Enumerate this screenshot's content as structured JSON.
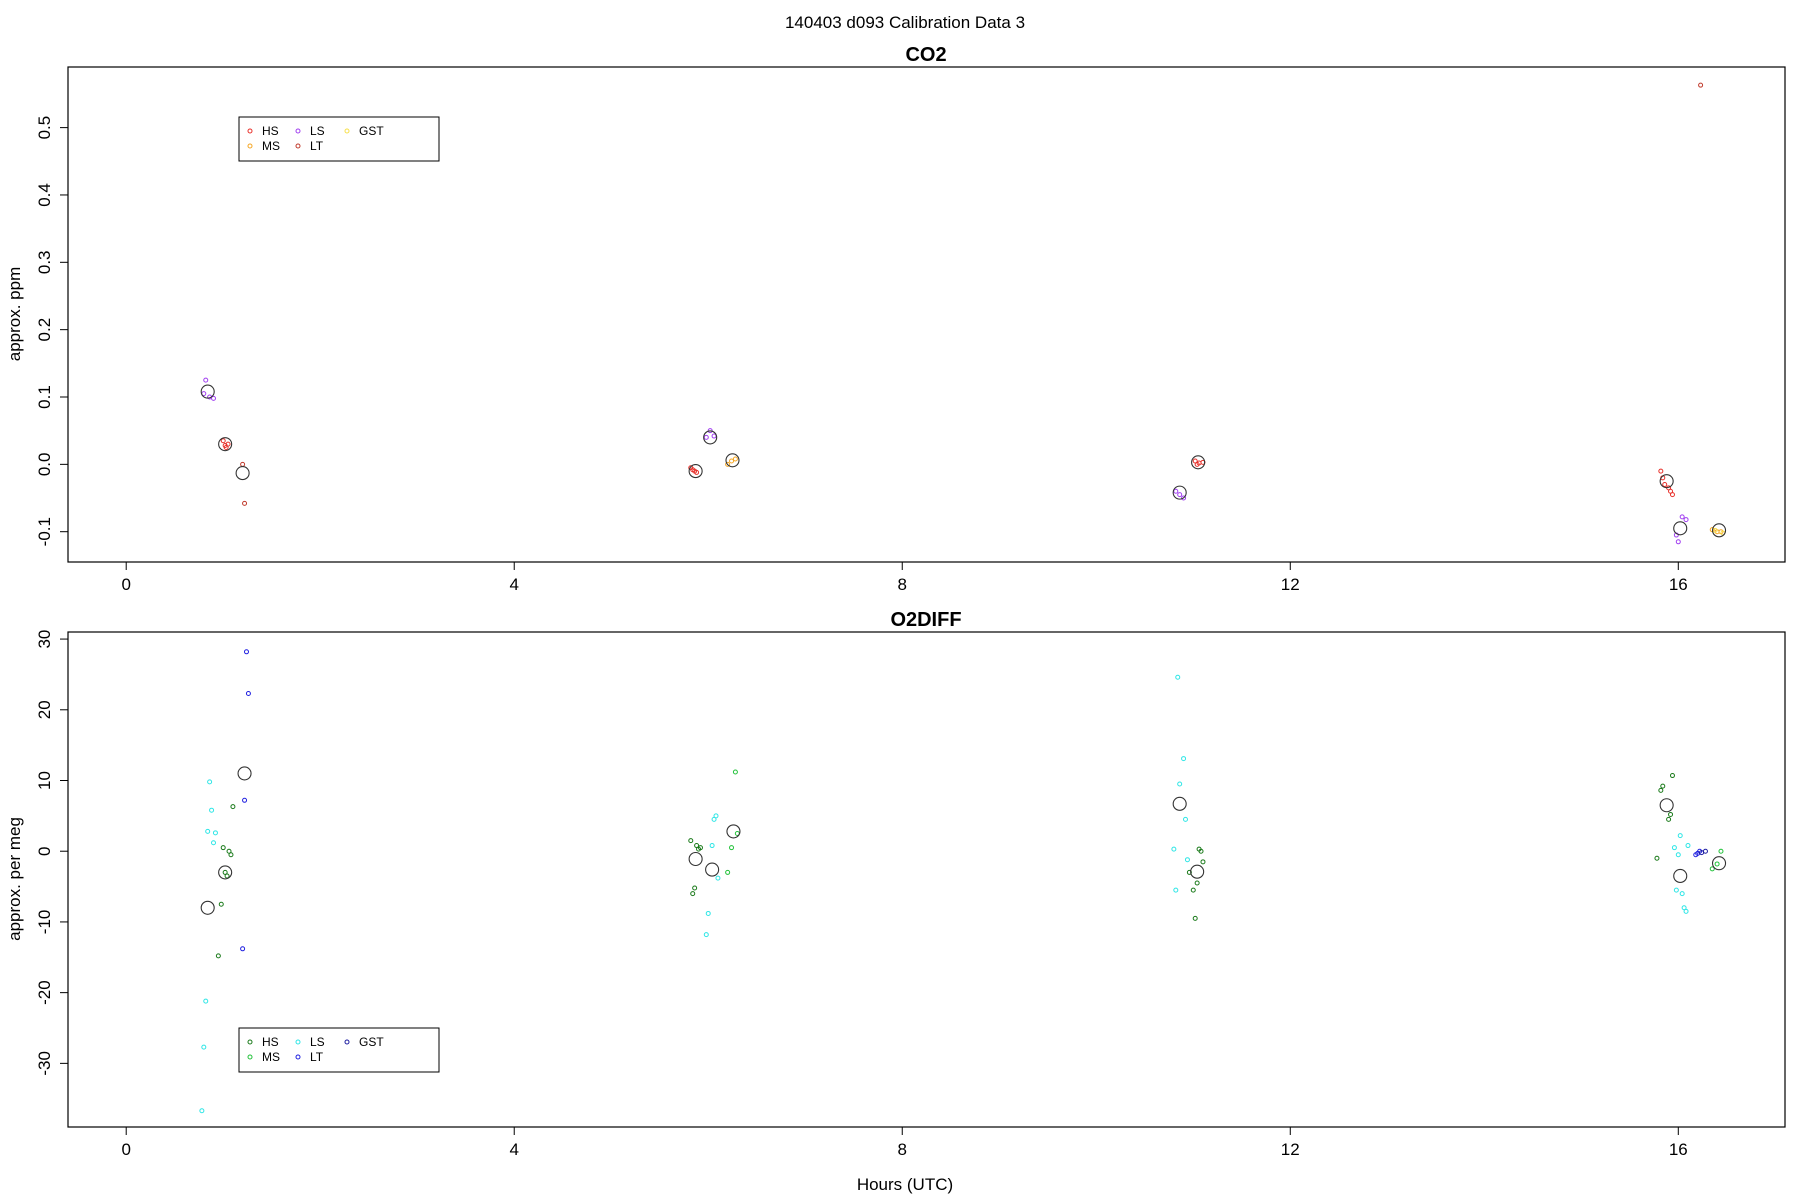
{
  "figure_title": "140403   d093   Calibration Data 3",
  "chart_data": [
    {
      "type": "scatter",
      "title": "CO2",
      "xlabel": "",
      "ylabel": "approx. ppm",
      "xlim": [
        -0.6,
        17.1
      ],
      "ylim": [
        -0.145,
        0.59
      ],
      "xticks": [
        0,
        4,
        8,
        12,
        16
      ],
      "yticks": [
        -0.1,
        0.0,
        0.1,
        0.2,
        0.3,
        0.4,
        0.5
      ],
      "ytick_labels": [
        "-0.1",
        "0.0",
        "0.1",
        "0.2",
        "0.3",
        "0.4",
        "0.5"
      ],
      "grid": false,
      "legend_position": "top-left",
      "legend": [
        {
          "label": "HS",
          "color": "#e8302a"
        },
        {
          "label": "MS",
          "color": "#f5a623"
        },
        {
          "label": "LS",
          "color": "#a13ff0"
        },
        {
          "label": "LT",
          "color": "#c0392b"
        },
        {
          "label": "GST",
          "color": "#f7e04a"
        }
      ],
      "series": [
        {
          "name": "HS",
          "color": "#e8302a",
          "points": [
            [
              1.0,
              0.035
            ],
            [
              1.02,
              0.028
            ],
            [
              1.05,
              0.03
            ],
            [
              1.03,
              0.025
            ],
            [
              5.82,
              -0.005
            ],
            [
              5.86,
              -0.01
            ],
            [
              5.88,
              -0.012
            ],
            [
              5.84,
              -0.008
            ],
            [
              11.02,
              0.005
            ],
            [
              11.06,
              0.002
            ],
            [
              11.1,
              0.003
            ],
            [
              11.04,
              0.0
            ],
            [
              15.82,
              -0.01
            ],
            [
              15.86,
              -0.03
            ],
            [
              15.9,
              -0.035
            ],
            [
              15.92,
              -0.04
            ],
            [
              15.94,
              -0.045
            ],
            [
              15.84,
              -0.02
            ]
          ]
        },
        {
          "name": "MS",
          "color": "#f5a623",
          "points": [
            [
              6.2,
              0.0
            ],
            [
              6.24,
              0.005
            ],
            [
              6.28,
              0.008
            ],
            [
              16.35,
              -0.097
            ],
            [
              16.4,
              -0.1
            ],
            [
              16.44,
              -0.1
            ]
          ]
        },
        {
          "name": "LS",
          "color": "#a13ff0",
          "points": [
            [
              0.8,
              0.105
            ],
            [
              0.82,
              0.125
            ],
            [
              0.86,
              0.1
            ],
            [
              0.9,
              0.098
            ],
            [
              5.98,
              0.04
            ],
            [
              6.02,
              0.05
            ],
            [
              6.06,
              0.042
            ],
            [
              10.82,
              -0.04
            ],
            [
              10.86,
              -0.045
            ],
            [
              10.9,
              -0.05
            ],
            [
              15.98,
              -0.105
            ],
            [
              16.0,
              -0.115
            ],
            [
              16.04,
              -0.078
            ],
            [
              16.08,
              -0.082
            ]
          ]
        },
        {
          "name": "LT",
          "color": "#c0392b",
          "points": [
            [
              1.2,
              0.0
            ],
            [
              1.22,
              -0.058
            ],
            [
              16.23,
              0.563
            ]
          ]
        },
        {
          "name": "GST",
          "color": "#f7e04a",
          "points": [
            [
              16.38,
              -0.098
            ],
            [
              16.46,
              -0.102
            ]
          ]
        },
        {
          "name": "Mean",
          "color": "#333333",
          "points": [
            [
              0.84,
              0.108
            ],
            [
              1.02,
              0.03
            ],
            [
              1.2,
              -0.013
            ],
            [
              5.87,
              -0.01
            ],
            [
              6.02,
              0.04
            ],
            [
              6.25,
              0.006
            ],
            [
              10.86,
              -0.042
            ],
            [
              11.05,
              0.003
            ],
            [
              15.88,
              -0.025
            ],
            [
              16.02,
              -0.095
            ],
            [
              16.42,
              -0.098
            ]
          ]
        }
      ]
    },
    {
      "type": "scatter",
      "title": "O2DIFF",
      "xlabel": "Hours (UTC)",
      "ylabel": "approx. per meg",
      "xlim": [
        -0.6,
        17.1
      ],
      "ylim": [
        -39,
        31
      ],
      "xticks": [
        0,
        4,
        8,
        12,
        16
      ],
      "yticks": [
        -30,
        -20,
        -10,
        0,
        10,
        20,
        30
      ],
      "ytick_labels": [
        "-30",
        "-20",
        "-10",
        "0",
        "10",
        "20",
        "30"
      ],
      "grid": false,
      "legend_position": "bottom-left",
      "legend": [
        {
          "label": "HS",
          "color": "#1a7a1a"
        },
        {
          "label": "MS",
          "color": "#22c23a"
        },
        {
          "label": "LS",
          "color": "#2ee6e6"
        },
        {
          "label": "LT",
          "color": "#1f1fe0"
        },
        {
          "label": "GST",
          "color": "#1b1ba0"
        }
      ],
      "series": [
        {
          "name": "HS",
          "color": "#1a7a1a",
          "points": [
            [
              0.98,
              -7.5
            ],
            [
              1.0,
              0.5
            ],
            [
              1.02,
              -3.0
            ],
            [
              1.04,
              -3.5
            ],
            [
              1.06,
              0.0
            ],
            [
              1.08,
              -0.5
            ],
            [
              0.95,
              -14.8
            ],
            [
              1.1,
              6.3
            ],
            [
              5.82,
              1.5
            ],
            [
              5.86,
              -5.2
            ],
            [
              5.84,
              -6.0
            ],
            [
              5.88,
              0.8
            ],
            [
              5.9,
              0.3
            ],
            [
              5.92,
              0.5
            ],
            [
              10.96,
              -3.0
            ],
            [
              11.0,
              -5.5
            ],
            [
              11.04,
              -4.5
            ],
            [
              11.06,
              0.3
            ],
            [
              11.1,
              -1.5
            ],
            [
              11.08,
              0.0
            ],
            [
              11.02,
              -9.5
            ],
            [
              15.78,
              -1.0
            ],
            [
              15.82,
              8.6
            ],
            [
              15.84,
              9.2
            ],
            [
              15.9,
              4.5
            ],
            [
              15.94,
              10.7
            ],
            [
              15.92,
              5.2
            ]
          ]
        },
        {
          "name": "MS",
          "color": "#22c23a",
          "points": [
            [
              6.2,
              -3.0
            ],
            [
              6.24,
              0.5
            ],
            [
              6.28,
              11.2
            ],
            [
              6.3,
              2.5
            ],
            [
              16.35,
              -2.5
            ],
            [
              16.4,
              -1.8
            ],
            [
              16.44,
              0.0
            ]
          ]
        },
        {
          "name": "LS",
          "color": "#2ee6e6",
          "points": [
            [
              0.78,
              -36.7
            ],
            [
              0.8,
              -27.7
            ],
            [
              0.82,
              -21.2
            ],
            [
              0.84,
              2.8
            ],
            [
              0.86,
              9.8
            ],
            [
              0.88,
              5.8
            ],
            [
              0.9,
              1.2
            ],
            [
              0.92,
              2.6
            ],
            [
              5.98,
              -11.8
            ],
            [
              6.0,
              -8.8
            ],
            [
              6.04,
              0.8
            ],
            [
              6.06,
              4.5
            ],
            [
              6.08,
              5.0
            ],
            [
              6.1,
              -3.8
            ],
            [
              10.8,
              0.3
            ],
            [
              10.82,
              -5.5
            ],
            [
              10.84,
              24.6
            ],
            [
              10.86,
              9.5
            ],
            [
              10.9,
              13.1
            ],
            [
              10.92,
              4.5
            ],
            [
              10.94,
              -1.2
            ],
            [
              15.98,
              -5.5
            ],
            [
              16.0,
              -0.5
            ],
            [
              16.04,
              -6.0
            ],
            [
              16.06,
              -8.0
            ],
            [
              16.08,
              -8.5
            ],
            [
              16.02,
              2.2
            ],
            [
              16.1,
              0.8
            ],
            [
              15.96,
              0.5
            ]
          ]
        },
        {
          "name": "LT",
          "color": "#1f1fe0",
          "points": [
            [
              1.2,
              -13.8
            ],
            [
              1.22,
              7.2
            ],
            [
              1.24,
              28.2
            ],
            [
              1.26,
              22.3
            ],
            [
              16.2,
              -0.3
            ],
            [
              16.22,
              0.0
            ],
            [
              16.18,
              -0.5
            ]
          ]
        },
        {
          "name": "GST",
          "color": "#1b1ba0",
          "points": [
            [
              16.24,
              -0.2
            ],
            [
              16.28,
              0.0
            ]
          ]
        },
        {
          "name": "Mean",
          "color": "#333333",
          "points": [
            [
              0.84,
              -8.0
            ],
            [
              1.02,
              -3.0
            ],
            [
              1.22,
              11.0
            ],
            [
              5.87,
              -1.1
            ],
            [
              6.04,
              -2.6
            ],
            [
              6.26,
              2.8
            ],
            [
              10.86,
              6.7
            ],
            [
              11.04,
              -2.9
            ],
            [
              15.88,
              6.5
            ],
            [
              16.02,
              -3.5
            ],
            [
              16.42,
              -1.7
            ]
          ]
        }
      ]
    }
  ]
}
